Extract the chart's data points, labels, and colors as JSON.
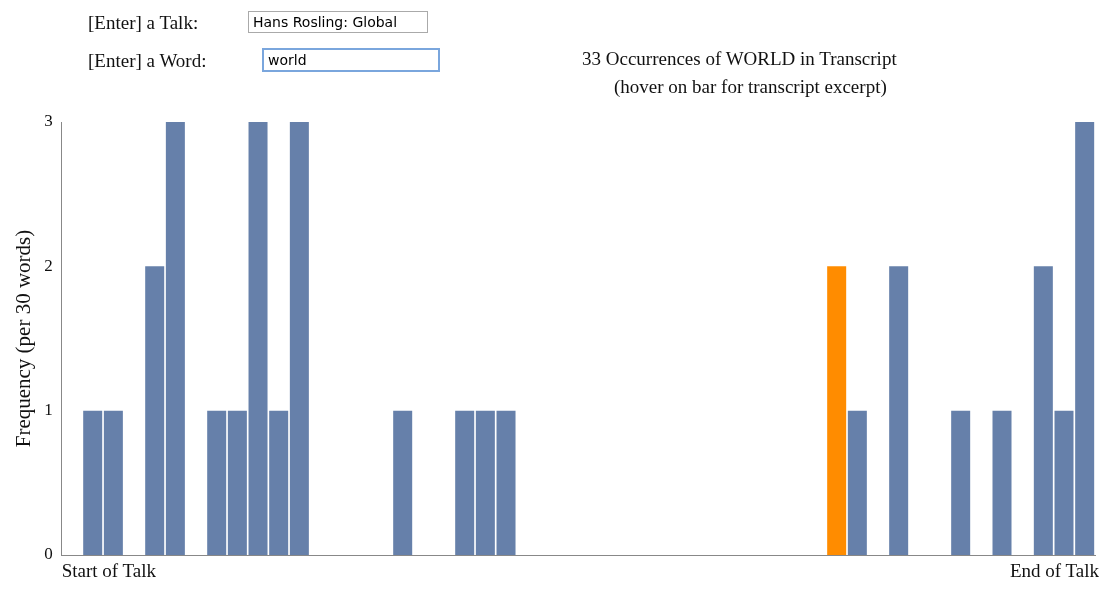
{
  "chart_data": {
    "type": "bar",
    "title": "33 Occurrences of WORLD in Transcript",
    "subtitle": "(hover on bar for transcript excerpt)",
    "ylabel": "Frequency (per 30 words)",
    "categories": [
      null,
      null,
      null,
      null,
      null,
      null,
      null,
      null,
      null,
      null,
      null,
      null,
      null,
      null,
      null,
      null,
      null,
      null,
      null,
      null,
      null,
      null,
      null,
      null,
      null,
      null,
      null,
      null,
      null,
      null,
      null,
      null,
      null,
      null,
      null,
      null,
      null,
      null,
      null,
      null,
      null,
      null,
      null,
      null,
      null,
      null,
      null,
      null,
      null,
      null
    ],
    "values": [
      0,
      1,
      1,
      0,
      2,
      3,
      0,
      1,
      1,
      3,
      1,
      3,
      0,
      0,
      0,
      0,
      1,
      0,
      0,
      1,
      1,
      1,
      0,
      0,
      0,
      0,
      0,
      0,
      0,
      0,
      0,
      0,
      0,
      0,
      0,
      0,
      0,
      2,
      1,
      0,
      2,
      0,
      0,
      1,
      0,
      1,
      0,
      2,
      1,
      3
    ],
    "colors": [
      "#6680aa",
      "#6680aa",
      "#6680aa",
      "#6680aa",
      "#6680aa",
      "#6680aa",
      "#6680aa",
      "#6680aa",
      "#6680aa",
      "#6680aa",
      "#6680aa",
      "#6680aa",
      "#6680aa",
      "#6680aa",
      "#6680aa",
      "#6680aa",
      "#6680aa",
      "#6680aa",
      "#6680aa",
      "#6680aa",
      "#6680aa",
      "#6680aa",
      "#6680aa",
      "#6680aa",
      "#6680aa",
      "#6680aa",
      "#6680aa",
      "#6680aa",
      "#6680aa",
      "#6680aa",
      "#6680aa",
      "#6680aa",
      "#6680aa",
      "#6680aa",
      "#6680aa",
      "#6680aa",
      "#6680aa",
      "#ff8c00",
      "#6680aa",
      "#6680aa",
      "#6680aa",
      "#6680aa",
      "#6680aa",
      "#6680aa",
      "#6680aa",
      "#6680aa",
      "#6680aa",
      "#6680aa",
      "#6680aa",
      "#6680aa"
    ],
    "ylim": [
      0,
      3
    ],
    "yticks": [
      0,
      1,
      2,
      3
    ],
    "grid": false,
    "legend": false,
    "annotations": [
      "[Enter] a Talk:",
      "Hans Rosling: Global",
      "[Enter] a Word:",
      "world",
      "Start of Talk",
      "End of Talk"
    ]
  }
}
